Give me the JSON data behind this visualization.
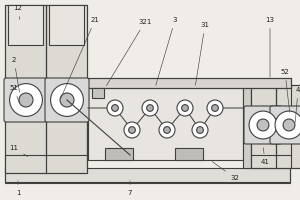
{
  "bg_color": "#f0ede8",
  "line_color": "#404040",
  "label_color": "#222222",
  "fig_width": 3.0,
  "fig_height": 2.0,
  "dpi": 100,
  "lw": 0.8,
  "label_fs": 5.0
}
